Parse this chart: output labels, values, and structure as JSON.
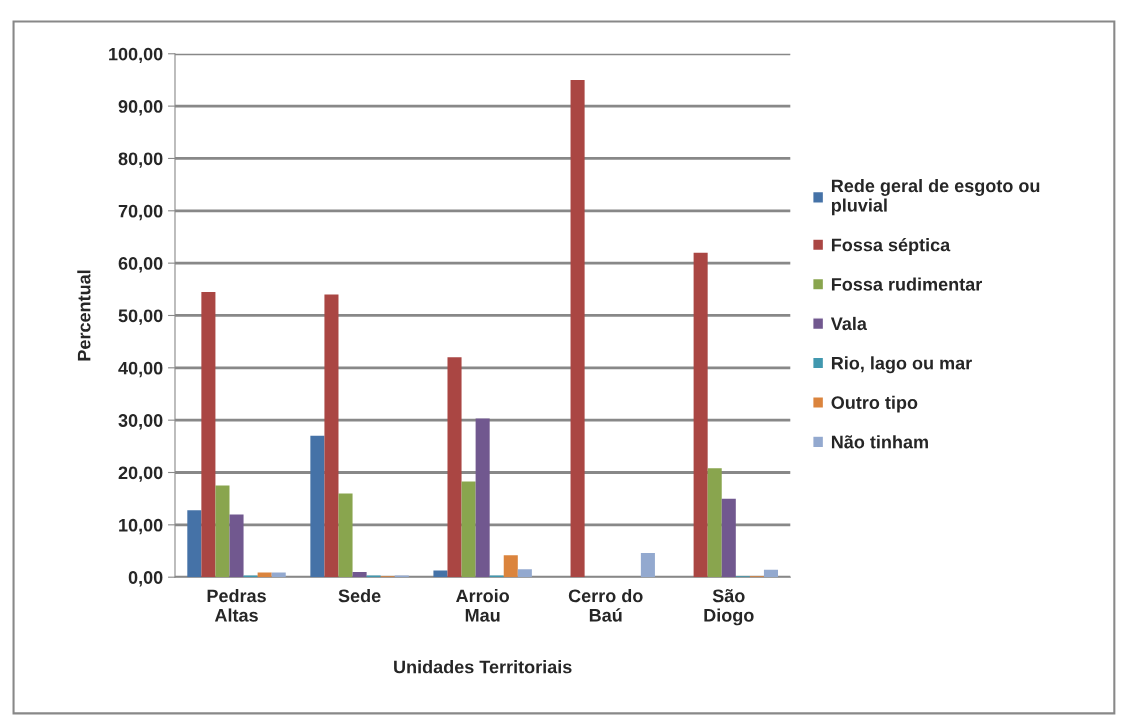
{
  "chart_data": {
    "type": "bar",
    "xlabel": "Unidades Territoriais",
    "ylabel": "Percentual",
    "categories": [
      "Pedras\nAltas",
      "Sede",
      "Arroio\nMau",
      "Cerro do\nBaú",
      "São\nDiogo"
    ],
    "series": [
      {
        "name": "Rede geral de esgoto ou\npluvial",
        "color": "#4572a7",
        "values": [
          12.8,
          27.0,
          1.3,
          0,
          0
        ]
      },
      {
        "name": "Fossa séptica",
        "color": "#aa4643",
        "values": [
          54.5,
          54.0,
          42.0,
          95.0,
          62.0
        ]
      },
      {
        "name": "Fossa rudimentar",
        "color": "#89a54e",
        "values": [
          17.5,
          16.0,
          18.3,
          0,
          20.8
        ]
      },
      {
        "name": "Vala",
        "color": "#71588f",
        "values": [
          12.0,
          1.0,
          30.3,
          0,
          15.0
        ]
      },
      {
        "name": "Rio, lago ou mar",
        "color": "#4198af",
        "values": [
          0.3,
          0.3,
          0.3,
          0,
          0.2
        ]
      },
      {
        "name": "Outro tipo",
        "color": "#db843d",
        "values": [
          0.9,
          0.2,
          4.2,
          0,
          0.2
        ]
      },
      {
        "name": "Não tinham",
        "color": "#93a9cf",
        "values": [
          0.9,
          0.3,
          1.5,
          4.6,
          1.4
        ]
      }
    ],
    "ylim": [
      0,
      100
    ],
    "yticks": [
      {
        "value": 0,
        "label": "0,00"
      },
      {
        "value": 10,
        "label": "10,00"
      },
      {
        "value": 20,
        "label": "20,00"
      },
      {
        "value": 30,
        "label": "30,00"
      },
      {
        "value": 40,
        "label": "40,00"
      },
      {
        "value": 50,
        "label": "50,00"
      },
      {
        "value": 60,
        "label": "60,00"
      },
      {
        "value": 70,
        "label": "70,00"
      },
      {
        "value": 80,
        "label": "80,00"
      },
      {
        "value": 90,
        "label": "90,00"
      },
      {
        "value": 100,
        "label": "100,00"
      }
    ],
    "grid": "y",
    "legend": "right"
  }
}
